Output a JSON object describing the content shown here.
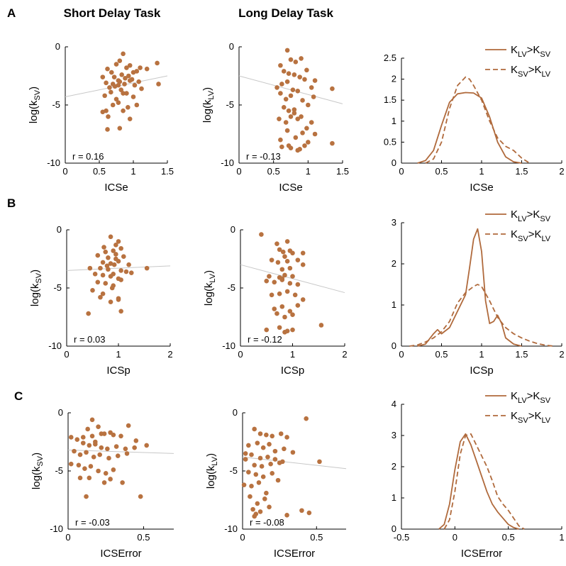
{
  "columns": [
    "Short Delay Task",
    "Long Delay Task"
  ],
  "rows": [
    "A",
    "B",
    "C"
  ],
  "colors": {
    "marker": "#b87240",
    "fit": "#c8c8c8",
    "curve": "#b06a3c"
  },
  "chart_data": [
    {
      "type": "scatter",
      "row": "A",
      "col": "Short Delay Task",
      "xlabel": "ICSe",
      "ylabel": "log(k",
      "ylabel_sub": "SV",
      "ylabel_end": ")",
      "xlim": [
        0,
        1.5
      ],
      "ylim": [
        -10,
        0
      ],
      "xticks": [
        "0",
        "0.5",
        "1",
        "1.5"
      ],
      "xtick_values": [
        0,
        0.5,
        1,
        1.5
      ],
      "yticks": [
        "-10",
        "-5",
        "0"
      ],
      "ytick_values": [
        -10,
        -5,
        0
      ],
      "r_label": "r =  0.16",
      "fit": {
        "x": [
          0,
          1.5
        ],
        "y": [
          -4.3,
          -2.5
        ]
      },
      "x": [
        0.55,
        0.62,
        0.68,
        0.75,
        0.8,
        0.85,
        0.72,
        0.9,
        0.95,
        1.0,
        0.6,
        0.7,
        0.78,
        0.83,
        0.88,
        0.93,
        0.98,
        1.05,
        1.1,
        0.65,
        0.73,
        0.8,
        0.87,
        0.95,
        1.02,
        1.08,
        0.58,
        0.67,
        0.75,
        0.82,
        0.9,
        1.0,
        1.12,
        1.2,
        1.35,
        0.6,
        0.7,
        0.78,
        0.85,
        0.95,
        1.05,
        0.55,
        0.63,
        0.8,
        0.92,
        1.37,
        0.85,
        0.62,
        0.78
      ],
      "y": [
        -2.6,
        -1.9,
        -2.2,
        -1.5,
        -1.2,
        -0.6,
        -2.6,
        -1.8,
        -1.6,
        -2.2,
        -3.1,
        -3.2,
        -2.9,
        -2.4,
        -2.7,
        -2.5,
        -2.8,
        -2.1,
        -1.8,
        -3.5,
        -3.4,
        -3.0,
        -3.2,
        -2.9,
        -3.3,
        -3.0,
        -4.2,
        -3.9,
        -4.5,
        -3.7,
        -4.0,
        -4.3,
        -3.6,
        -1.9,
        -1.4,
        -5.5,
        -5.0,
        -4.8,
        -5.5,
        -6.2,
        -5.0,
        -5.6,
        -6.0,
        -7.0,
        -5.2,
        -3.2,
        -4.0,
        -7.1,
        -3.3
      ]
    },
    {
      "type": "scatter",
      "row": "A",
      "col": "Long Delay Task",
      "xlabel": "ICSe",
      "ylabel": "log(k",
      "ylabel_sub": "LV",
      "ylabel_end": ")",
      "xlim": [
        0,
        1.5
      ],
      "ylim": [
        -10,
        0
      ],
      "xticks": [
        "0",
        "0.5",
        "1",
        "1.5"
      ],
      "xtick_values": [
        0,
        0.5,
        1,
        1.5
      ],
      "yticks": [
        "-10",
        "-5",
        "0"
      ],
      "ytick_values": [
        -10,
        -5,
        0
      ],
      "r_label": "r = -0.13",
      "fit": {
        "x": [
          0,
          1.5
        ],
        "y": [
          -2.5,
          -4.9
        ]
      },
      "x": [
        0.7,
        0.6,
        0.75,
        0.82,
        0.9,
        0.98,
        0.65,
        0.72,
        0.8,
        0.88,
        0.55,
        0.62,
        0.7,
        0.78,
        0.95,
        1.05,
        1.1,
        0.6,
        0.68,
        0.75,
        0.85,
        0.92,
        1.0,
        1.08,
        0.65,
        0.72,
        0.8,
        0.9,
        1.35,
        0.58,
        0.68,
        0.75,
        0.85,
        0.98,
        1.1,
        0.7,
        0.82,
        0.92,
        1.05,
        0.6,
        0.72,
        0.88,
        1.0,
        1.35,
        0.62,
        0.75,
        0.85,
        0.95,
        0.8
      ],
      "y": [
        -0.3,
        -1.6,
        -1.1,
        -1.3,
        -1.0,
        -2.0,
        -2.1,
        -2.3,
        -2.4,
        -2.6,
        -3.5,
        -3.2,
        -3.0,
        -3.7,
        -2.8,
        -3.5,
        -2.9,
        -4.0,
        -4.5,
        -4.2,
        -3.8,
        -4.6,
        -5.0,
        -4.3,
        -5.2,
        -5.5,
        -5.4,
        -6.0,
        -3.6,
        -6.2,
        -6.5,
        -6.0,
        -6.2,
        -7.0,
        -7.5,
        -7.2,
        -7.8,
        -7.4,
        -6.5,
        -8.0,
        -8.5,
        -8.8,
        -8.2,
        -8.3,
        -8.6,
        -8.7,
        -8.9,
        -8.5,
        -5.7
      ]
    },
    {
      "type": "line",
      "row": "A",
      "col": 3,
      "xlabel": "ICSe",
      "xlim": [
        0,
        2
      ],
      "ylim": [
        0,
        2.5
      ],
      "xticks": [
        "0",
        "0.5",
        "1",
        "1.5",
        "2"
      ],
      "xtick_values": [
        0,
        0.5,
        1,
        1.5,
        2
      ],
      "yticks": [
        "0",
        "0.5",
        "1",
        "1.5",
        "2",
        "2.5"
      ],
      "ytick_values": [
        0,
        0.5,
        1,
        1.5,
        2,
        2.5
      ],
      "legend": [
        {
          "main": "K",
          "sub1": "LV",
          "mid": ">K",
          "sub2": "SV",
          "style": "solid"
        },
        {
          "main": "K",
          "sub1": "SV",
          "mid": ">K",
          "sub2": "LV",
          "style": "dashed"
        }
      ],
      "series": [
        {
          "style": "solid",
          "x": [
            0.2,
            0.3,
            0.4,
            0.5,
            0.6,
            0.7,
            0.8,
            0.9,
            1.0,
            1.1,
            1.2,
            1.3,
            1.4,
            1.5
          ],
          "y": [
            0,
            0.06,
            0.3,
            0.9,
            1.45,
            1.65,
            1.68,
            1.67,
            1.55,
            1.1,
            0.5,
            0.15,
            0.03,
            0
          ]
        },
        {
          "style": "dashed",
          "x": [
            0.3,
            0.4,
            0.5,
            0.6,
            0.7,
            0.8,
            0.85,
            0.9,
            1.0,
            1.1,
            1.2,
            1.3,
            1.4,
            1.5,
            1.6
          ],
          "y": [
            0,
            0.1,
            0.5,
            1.3,
            1.85,
            2.05,
            2.0,
            1.85,
            1.5,
            1.0,
            0.6,
            0.4,
            0.3,
            0.12,
            0
          ]
        }
      ]
    },
    {
      "type": "scatter",
      "row": "B",
      "col": "Short Delay Task",
      "xlabel": "ICSp",
      "ylabel": "log(k",
      "ylabel_sub": "SV",
      "ylabel_end": ")",
      "xlim": [
        0,
        2
      ],
      "ylim": [
        -10,
        0
      ],
      "xticks": [
        "0",
        "1",
        "2"
      ],
      "xtick_values": [
        0,
        1,
        2
      ],
      "yticks": [
        "-10",
        "-5",
        "0"
      ],
      "ytick_values": [
        -10,
        -5,
        0
      ],
      "r_label": "r =  0.03",
      "fit": {
        "x": [
          0,
          2
        ],
        "y": [
          -3.5,
          -3.1
        ]
      },
      "x": [
        0.85,
        0.95,
        1.0,
        0.75,
        0.9,
        1.05,
        0.6,
        0.8,
        0.95,
        1.1,
        0.7,
        0.85,
        1.0,
        1.2,
        0.45,
        0.65,
        0.8,
        0.92,
        1.05,
        1.15,
        0.55,
        0.7,
        0.85,
        1.0,
        1.25,
        1.55,
        0.6,
        0.75,
        0.9,
        1.05,
        0.5,
        0.7,
        0.88,
        1.0,
        0.65,
        0.85,
        1.0,
        0.42,
        1.05,
        0.95,
        0.78,
        0.9,
        0.72
      ],
      "y": [
        -0.6,
        -1.3,
        -1.0,
        -1.9,
        -1.8,
        -1.6,
        -2.2,
        -2.4,
        -2.1,
        -2.3,
        -2.8,
        -2.9,
        -2.7,
        -3.0,
        -3.3,
        -3.3,
        -3.4,
        -3.0,
        -3.5,
        -3.6,
        -3.8,
        -3.9,
        -4.0,
        -4.2,
        -3.7,
        -3.3,
        -4.5,
        -4.6,
        -4.8,
        -4.3,
        -5.2,
        -5.5,
        -5.0,
        -5.9,
        -5.8,
        -6.2,
        -6.0,
        -7.2,
        -7.0,
        -2.5,
        -3.1,
        -3.8,
        -1.5
      ]
    },
    {
      "type": "scatter",
      "row": "B",
      "col": "Long Delay Task",
      "xlabel": "ICSp",
      "ylabel": "log(k",
      "ylabel_sub": "LV",
      "ylabel_end": ")",
      "xlim": [
        0,
        2
      ],
      "ylim": [
        -10,
        0
      ],
      "xticks": [
        "0",
        "1",
        "2"
      ],
      "xtick_values": [
        0,
        1,
        2
      ],
      "yticks": [
        "-10",
        "-5",
        "0"
      ],
      "ytick_values": [
        -10,
        -5,
        0
      ],
      "r_label": "r = -0.12",
      "fit": {
        "x": [
          0,
          2
        ],
        "y": [
          -3.0,
          -5.4
        ]
      },
      "x": [
        0.4,
        0.7,
        0.9,
        0.75,
        0.82,
        0.95,
        1.0,
        0.85,
        1.2,
        0.6,
        0.72,
        0.9,
        1.1,
        0.8,
        0.95,
        1.2,
        0.55,
        0.75,
        0.85,
        1.0,
        0.5,
        0.65,
        0.8,
        0.95,
        1.1,
        0.6,
        0.75,
        0.9,
        1.05,
        1.2,
        0.65,
        0.8,
        0.95,
        1.1,
        0.7,
        0.85,
        1.0,
        0.5,
        0.75,
        0.9,
        1.55,
        0.85,
        1.0,
        0.8
      ],
      "y": [
        -0.4,
        -1.2,
        -1.0,
        -1.7,
        -1.9,
        -1.8,
        -2.0,
        -2.3,
        -2.0,
        -2.6,
        -2.8,
        -2.7,
        -2.6,
        -3.4,
        -3.3,
        -3.0,
        -4.0,
        -4.1,
        -3.9,
        -4.0,
        -4.4,
        -4.5,
        -4.3,
        -4.6,
        -4.7,
        -5.6,
        -5.5,
        -5.3,
        -5.6,
        -6.0,
        -6.8,
        -6.6,
        -7.0,
        -6.5,
        -7.2,
        -7.5,
        -7.3,
        -8.6,
        -8.4,
        -8.7,
        -8.2,
        -8.8,
        -8.6,
        -4.2
      ]
    },
    {
      "type": "line",
      "row": "B",
      "col": 3,
      "xlabel": "ICSp",
      "xlim": [
        0,
        2
      ],
      "ylim": [
        0,
        3
      ],
      "xticks": [
        "0",
        "0.5",
        "1",
        "1.5",
        "2"
      ],
      "xtick_values": [
        0,
        0.5,
        1,
        1.5,
        2
      ],
      "yticks": [
        "0",
        "1",
        "2",
        "3"
      ],
      "ytick_values": [
        0,
        1,
        2,
        3
      ],
      "legend": [
        {
          "main": "K",
          "sub1": "LV",
          "mid": ">K",
          "sub2": "SV",
          "style": "solid"
        },
        {
          "main": "K",
          "sub1": "SV",
          "mid": ">K",
          "sub2": "LV",
          "style": "dashed"
        }
      ],
      "series": [
        {
          "style": "solid",
          "x": [
            0.2,
            0.3,
            0.4,
            0.45,
            0.5,
            0.6,
            0.7,
            0.8,
            0.85,
            0.9,
            0.95,
            1.0,
            1.05,
            1.1,
            1.15,
            1.2,
            1.25,
            1.3,
            1.4,
            1.5
          ],
          "y": [
            0,
            0.05,
            0.3,
            0.4,
            0.3,
            0.45,
            0.85,
            1.25,
            1.9,
            2.6,
            2.85,
            2.3,
            1.1,
            0.55,
            0.6,
            0.75,
            0.55,
            0.2,
            0.05,
            0
          ]
        },
        {
          "style": "dashed",
          "x": [
            0.1,
            0.2,
            0.3,
            0.4,
            0.5,
            0.6,
            0.7,
            0.8,
            0.9,
            0.95,
            1.0,
            1.1,
            1.2,
            1.3,
            1.4,
            1.5,
            1.6,
            1.7,
            1.8,
            1.9
          ],
          "y": [
            0,
            0.03,
            0.1,
            0.2,
            0.35,
            0.6,
            1.05,
            1.3,
            1.45,
            1.5,
            1.45,
            1.1,
            0.7,
            0.45,
            0.3,
            0.2,
            0.12,
            0.06,
            0.02,
            0
          ]
        }
      ]
    },
    {
      "type": "scatter",
      "row": "C",
      "col": "Short Delay Task",
      "xlabel": "ICSError",
      "ylabel": "log(k",
      "ylabel_sub": "SV",
      "ylabel_end": ")",
      "xlim": [
        0,
        0.7
      ],
      "ylim": [
        -10,
        0
      ],
      "xticks": [
        "0",
        "0.5"
      ],
      "xtick_values": [
        0,
        0.5
      ],
      "yticks": [
        "-10",
        "-5",
        "0"
      ],
      "ytick_values": [
        -10,
        -5,
        0
      ],
      "r_label": "r = -0.03",
      "fit": {
        "x": [
          0,
          0.7
        ],
        "y": [
          -3.2,
          -3.5
        ]
      },
      "x": [
        0.16,
        0.13,
        0.2,
        0.22,
        0.28,
        0.4,
        0.1,
        0.16,
        0.24,
        0.3,
        0.35,
        0.45,
        0.52,
        0.02,
        0.06,
        0.1,
        0.14,
        0.18,
        0.22,
        0.26,
        0.32,
        0.38,
        0.44,
        0.04,
        0.08,
        0.12,
        0.17,
        0.21,
        0.27,
        0.33,
        0.39,
        0.02,
        0.07,
        0.11,
        0.15,
        0.2,
        0.25,
        0.3,
        0.08,
        0.14,
        0.28,
        0.12,
        0.36,
        0.48,
        0.24,
        0.18
      ],
      "y": [
        -0.6,
        -1.4,
        -1.2,
        -1.8,
        -1.7,
        -1.1,
        -2.1,
        -2.0,
        -1.8,
        -1.9,
        -2.0,
        -2.4,
        -2.8,
        -2.1,
        -2.3,
        -2.6,
        -2.8,
        -2.7,
        -3.0,
        -3.1,
        -2.9,
        -3.1,
        -3.0,
        -3.3,
        -3.6,
        -3.4,
        -3.8,
        -3.6,
        -3.9,
        -3.7,
        -3.5,
        -4.4,
        -4.5,
        -4.8,
        -4.6,
        -5.0,
        -5.2,
        -4.9,
        -5.6,
        -5.6,
        -5.7,
        -7.2,
        -6.0,
        -7.2,
        -6.0,
        -2.5
      ]
    },
    {
      "type": "scatter",
      "row": "C",
      "col": "Long Delay Task",
      "xlabel": "ICSError",
      "ylabel": "log(k",
      "ylabel_sub": "LV",
      "ylabel_end": ")",
      "xlim": [
        0,
        0.7
      ],
      "ylim": [
        -10,
        0
      ],
      "xticks": [
        "0",
        "0.5"
      ],
      "xtick_values": [
        0,
        0.5
      ],
      "yticks": [
        "-10",
        "-5",
        "0"
      ],
      "ytick_values": [
        -10,
        -5,
        0
      ],
      "r_label": "r = -0.08",
      "fit": {
        "x": [
          0,
          0.7
        ],
        "y": [
          -3.8,
          -4.8
        ]
      },
      "x": [
        0.43,
        0.08,
        0.12,
        0.16,
        0.2,
        0.26,
        0.3,
        0.04,
        0.1,
        0.14,
        0.18,
        0.22,
        0.28,
        0.34,
        0.02,
        0.06,
        0.12,
        0.17,
        0.22,
        0.27,
        0.02,
        0.08,
        0.13,
        0.19,
        0.25,
        0.04,
        0.09,
        0.14,
        0.2,
        0.01,
        0.06,
        0.11,
        0.16,
        0.05,
        0.1,
        0.15,
        0.07,
        0.12,
        0.18,
        0.09,
        0.4,
        0.45,
        0.3,
        0.08,
        0.52,
        0.24
      ],
      "y": [
        -0.5,
        -1.4,
        -1.8,
        -1.9,
        -2.0,
        -1.8,
        -2.1,
        -2.8,
        -2.6,
        -3.0,
        -2.7,
        -3.3,
        -3.1,
        -3.4,
        -3.5,
        -3.6,
        -3.9,
        -3.8,
        -4.0,
        -4.2,
        -4.0,
        -4.5,
        -4.6,
        -4.4,
        -4.3,
        -5.1,
        -5.3,
        -5.5,
        -5.2,
        -6.2,
        -6.3,
        -6.0,
        -6.9,
        -7.2,
        -7.8,
        -7.4,
        -8.3,
        -8.5,
        -8.1,
        -8.7,
        -8.4,
        -8.6,
        -8.8,
        -8.9,
        -4.2,
        -5.8
      ]
    },
    {
      "type": "line",
      "row": "C",
      "col": 3,
      "xlabel": "ICSError",
      "xlim": [
        -0.5,
        1
      ],
      "ylim": [
        0,
        4
      ],
      "xticks": [
        "-0.5",
        "0",
        "0.5",
        "1"
      ],
      "xtick_values": [
        -0.5,
        0,
        0.5,
        1
      ],
      "yticks": [
        "0",
        "1",
        "2",
        "3",
        "4"
      ],
      "ytick_values": [
        0,
        1,
        2,
        3,
        4
      ],
      "legend": [
        {
          "main": "K",
          "sub1": "LV",
          "mid": ">K",
          "sub2": "SV",
          "style": "solid"
        },
        {
          "main": "K",
          "sub1": "SV",
          "mid": ">K",
          "sub2": "LV",
          "style": "dashed"
        }
      ],
      "series": [
        {
          "style": "solid",
          "x": [
            -0.15,
            -0.1,
            -0.05,
            0.0,
            0.05,
            0.1,
            0.15,
            0.2,
            0.25,
            0.3,
            0.35,
            0.4,
            0.45,
            0.5,
            0.55,
            0.6
          ],
          "y": [
            0,
            0.15,
            0.8,
            1.9,
            2.8,
            3.05,
            2.7,
            2.2,
            1.7,
            1.2,
            0.8,
            0.55,
            0.35,
            0.15,
            0.05,
            0
          ]
        },
        {
          "style": "dashed",
          "x": [
            -0.1,
            -0.05,
            0.0,
            0.05,
            0.1,
            0.15,
            0.2,
            0.25,
            0.3,
            0.35,
            0.4,
            0.45,
            0.5,
            0.55,
            0.6,
            0.65
          ],
          "y": [
            0,
            0.3,
            1.2,
            2.4,
            3.0,
            3.05,
            2.7,
            2.35,
            2.0,
            1.55,
            1.05,
            0.8,
            0.6,
            0.35,
            0.1,
            0
          ]
        }
      ]
    }
  ]
}
